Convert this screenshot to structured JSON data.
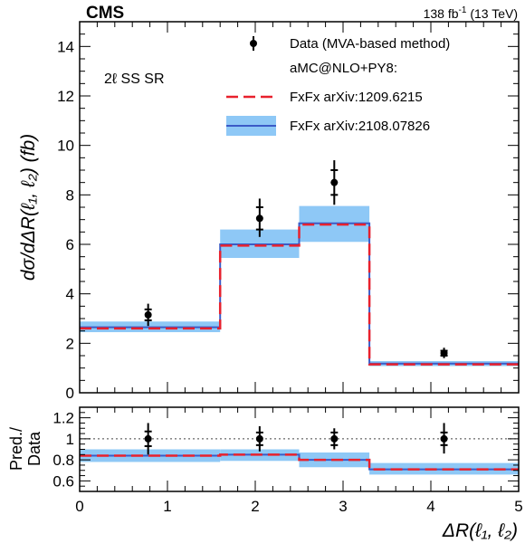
{
  "header": {
    "experiment": "CMS",
    "luminosity": "138 fb",
    "luminosity_sup": "-1",
    "energy": " (13 TeV)"
  },
  "region_label": "2ℓ SS SR",
  "legend": {
    "data": "Data (MVA-based method)",
    "generator_header": "aMC@NLO+PY8:",
    "pred1": "FxFx arXiv:1209.6215",
    "pred2": "FxFx arXiv:2108.07826"
  },
  "chart_data": [
    {
      "type": "line",
      "panel": "main",
      "ylabel": "dσ/dΔR(ℓ₁, ℓ₂) (fb)",
      "xlim": [
        0,
        5
      ],
      "ylim": [
        0,
        15
      ],
      "x_ticks": [
        0,
        1,
        2,
        3,
        4,
        5
      ],
      "y_ticks": [
        0,
        2,
        4,
        6,
        8,
        10,
        12,
        14
      ],
      "bin_edges": [
        0,
        1.6,
        2.5,
        3.3,
        5
      ],
      "data_points": {
        "name": "Data (MVA-based method)",
        "x": [
          0.78,
          2.05,
          2.9,
          4.15
        ],
        "y": [
          3.15,
          7.05,
          8.5,
          1.6
        ],
        "err_up": [
          0.45,
          0.8,
          0.9,
          0.22
        ],
        "err_down": [
          0.45,
          0.75,
          0.9,
          0.2
        ],
        "err_stat": [
          0.22,
          0.45,
          0.5,
          0.1
        ]
      },
      "series": [
        {
          "name": "FxFx arXiv:1209.6215",
          "style": "dashed",
          "color": "#e8212d",
          "values": [
            2.6,
            5.95,
            6.8,
            1.15
          ]
        },
        {
          "name": "FxFx arXiv:2108.07826",
          "style": "solid-band",
          "color": "#3a5bc7",
          "band_color": "#8ec8f6",
          "values": [
            2.65,
            6.0,
            6.85,
            1.18
          ],
          "band_low": [
            2.45,
            5.45,
            6.1,
            1.08
          ],
          "band_high": [
            2.88,
            6.6,
            7.55,
            1.28
          ]
        }
      ]
    },
    {
      "type": "line",
      "panel": "ratio",
      "ylabel": "Pred./Data",
      "xlabel": "ΔR(ℓ₁, ℓ₂)",
      "xlim": [
        0,
        5
      ],
      "ylim": [
        0.5,
        1.3
      ],
      "x_ticks": [
        0,
        1,
        2,
        3,
        4,
        5
      ],
      "y_ticks": [
        0.6,
        0.8,
        1,
        1.2
      ],
      "reference_line": 1,
      "bin_edges": [
        0,
        1.6,
        2.5,
        3.3,
        5
      ],
      "data_points": {
        "x": [
          0.78,
          2.05,
          2.9,
          4.15
        ],
        "y": [
          1,
          1,
          1,
          1
        ],
        "err_up": [
          0.15,
          0.12,
          0.1,
          0.15
        ],
        "err_down": [
          0.15,
          0.12,
          0.1,
          0.14
        ],
        "err_stat": [
          0.07,
          0.06,
          0.06,
          0.06
        ]
      },
      "series": [
        {
          "name": "FxFx arXiv:1209.6215",
          "style": "dashed",
          "color": "#e8212d",
          "values": [
            0.84,
            0.85,
            0.8,
            0.71
          ]
        },
        {
          "name": "FxFx arXiv:2108.07826",
          "style": "solid-band",
          "color": "#3a5bc7",
          "band_color": "#8ec8f6",
          "values": [
            0.84,
            0.85,
            0.8,
            0.71
          ],
          "band_low": [
            0.78,
            0.79,
            0.73,
            0.66
          ],
          "band_high": [
            0.9,
            0.9,
            0.87,
            0.77
          ]
        }
      ]
    }
  ]
}
